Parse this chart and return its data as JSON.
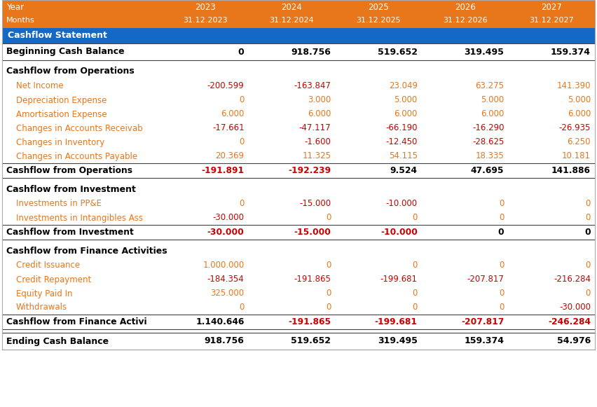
{
  "header_bg": "#E8761A",
  "header_text_color": "#FFFFFF",
  "section_header_bg": "#1469C7",
  "section_header_text": "#FFFFFF",
  "bold_label_color": "#000000",
  "detail_label_color": "#E8761A",
  "positive_bold_color": "#000000",
  "negative_color": "#CC0000",
  "subtotal_label_color": "#000000",
  "table_bg": "#FFFFFF",
  "line_color": "#999999",
  "fig_w": 8.52,
  "fig_h": 5.81,
  "dpi": 100,
  "years": [
    "2023",
    "2024",
    "2025",
    "2026",
    "2027"
  ],
  "months": [
    "31.12.2023",
    "31.12.2024",
    "31.12.2025",
    "31.12.2026",
    "31.12.2027"
  ],
  "rows": [
    {
      "label": "Beginning Cash Balance",
      "values": [
        "0",
        "918.756",
        "519.652",
        "319.495",
        "159.374"
      ],
      "bold": true,
      "type": "bold_row",
      "neg": [
        false,
        false,
        false,
        false,
        false
      ]
    },
    {
      "label": "Cashflow from Operations",
      "values": [
        "",
        "",
        "",
        "",
        ""
      ],
      "bold": true,
      "type": "section_title",
      "neg": [
        false,
        false,
        false,
        false,
        false
      ]
    },
    {
      "label": "Net Income",
      "values": [
        "-200.599",
        "-163.847",
        "23.049",
        "63.275",
        "141.390"
      ],
      "bold": false,
      "type": "detail",
      "neg": [
        true,
        true,
        false,
        false,
        false
      ]
    },
    {
      "label": "Depreciation Expense",
      "values": [
        "0",
        "3.000",
        "5.000",
        "5.000",
        "5.000"
      ],
      "bold": false,
      "type": "detail",
      "neg": [
        false,
        false,
        false,
        false,
        false
      ]
    },
    {
      "label": "Amortisation Expense",
      "values": [
        "6.000",
        "6.000",
        "6.000",
        "6.000",
        "6.000"
      ],
      "bold": false,
      "type": "detail",
      "neg": [
        false,
        false,
        false,
        false,
        false
      ]
    },
    {
      "label": "Changes in Accounts Receivab",
      "values": [
        "-17.661",
        "-47.117",
        "-66.190",
        "-16.290",
        "-26.935"
      ],
      "bold": false,
      "type": "detail",
      "neg": [
        true,
        true,
        true,
        true,
        true
      ]
    },
    {
      "label": "Changes in Inventory",
      "values": [
        "0",
        "-1.600",
        "-12.450",
        "-28.625",
        "6.250"
      ],
      "bold": false,
      "type": "detail",
      "neg": [
        false,
        true,
        true,
        true,
        false
      ]
    },
    {
      "label": "Changes in Accounts Payable",
      "values": [
        "20.369",
        "11.325",
        "54.115",
        "18.335",
        "10.181"
      ],
      "bold": false,
      "type": "detail",
      "neg": [
        false,
        false,
        false,
        false,
        false
      ]
    },
    {
      "label": "Cashflow from Operations",
      "values": [
        "-191.891",
        "-192.239",
        "9.524",
        "47.695",
        "141.886"
      ],
      "bold": true,
      "type": "subtotal",
      "neg": [
        true,
        true,
        false,
        false,
        false
      ]
    },
    {
      "label": "Cashflow from Investment",
      "values": [
        "",
        "",
        "",
        "",
        ""
      ],
      "bold": true,
      "type": "section_title",
      "neg": [
        false,
        false,
        false,
        false,
        false
      ]
    },
    {
      "label": "Investments in PP&E",
      "values": [
        "0",
        "-15.000",
        "-10.000",
        "0",
        "0"
      ],
      "bold": false,
      "type": "detail",
      "neg": [
        false,
        true,
        true,
        false,
        false
      ]
    },
    {
      "label": "Investments in Intangibles Ass",
      "values": [
        "-30.000",
        "0",
        "0",
        "0",
        "0"
      ],
      "bold": false,
      "type": "detail",
      "neg": [
        true,
        false,
        false,
        false,
        false
      ]
    },
    {
      "label": "Cashflow from Investment",
      "values": [
        "-30.000",
        "-15.000",
        "-10.000",
        "0",
        "0"
      ],
      "bold": true,
      "type": "subtotal",
      "neg": [
        true,
        true,
        true,
        false,
        false
      ]
    },
    {
      "label": "Cashflow from Finance Activities",
      "values": [
        "",
        "",
        "",
        "",
        ""
      ],
      "bold": true,
      "type": "section_title",
      "neg": [
        false,
        false,
        false,
        false,
        false
      ]
    },
    {
      "label": "Credit Issuance",
      "values": [
        "1.000.000",
        "0",
        "0",
        "0",
        "0"
      ],
      "bold": false,
      "type": "detail",
      "neg": [
        false,
        false,
        false,
        false,
        false
      ]
    },
    {
      "label": "Credit Repayment",
      "values": [
        "-184.354",
        "-191.865",
        "-199.681",
        "-207.817",
        "-216.284"
      ],
      "bold": false,
      "type": "detail",
      "neg": [
        true,
        true,
        true,
        true,
        true
      ]
    },
    {
      "label": "Equity Paid In",
      "values": [
        "325.000",
        "0",
        "0",
        "0",
        "0"
      ],
      "bold": false,
      "type": "detail",
      "neg": [
        false,
        false,
        false,
        false,
        false
      ]
    },
    {
      "label": "Withdrawals",
      "values": [
        "0",
        "0",
        "0",
        "0",
        "-30.000"
      ],
      "bold": false,
      "type": "detail",
      "neg": [
        false,
        false,
        false,
        false,
        true
      ]
    },
    {
      "label": "Cashflow from Finance Activi",
      "values": [
        "1.140.646",
        "-191.865",
        "-199.681",
        "-207.817",
        "-246.284"
      ],
      "bold": true,
      "type": "subtotal",
      "neg": [
        false,
        true,
        true,
        true,
        true
      ]
    },
    {
      "label": "Ending Cash Balance",
      "values": [
        "918.756",
        "519.652",
        "319.495",
        "159.374",
        "54.976"
      ],
      "bold": true,
      "type": "bold_row",
      "neg": [
        false,
        false,
        false,
        false,
        false
      ]
    }
  ]
}
